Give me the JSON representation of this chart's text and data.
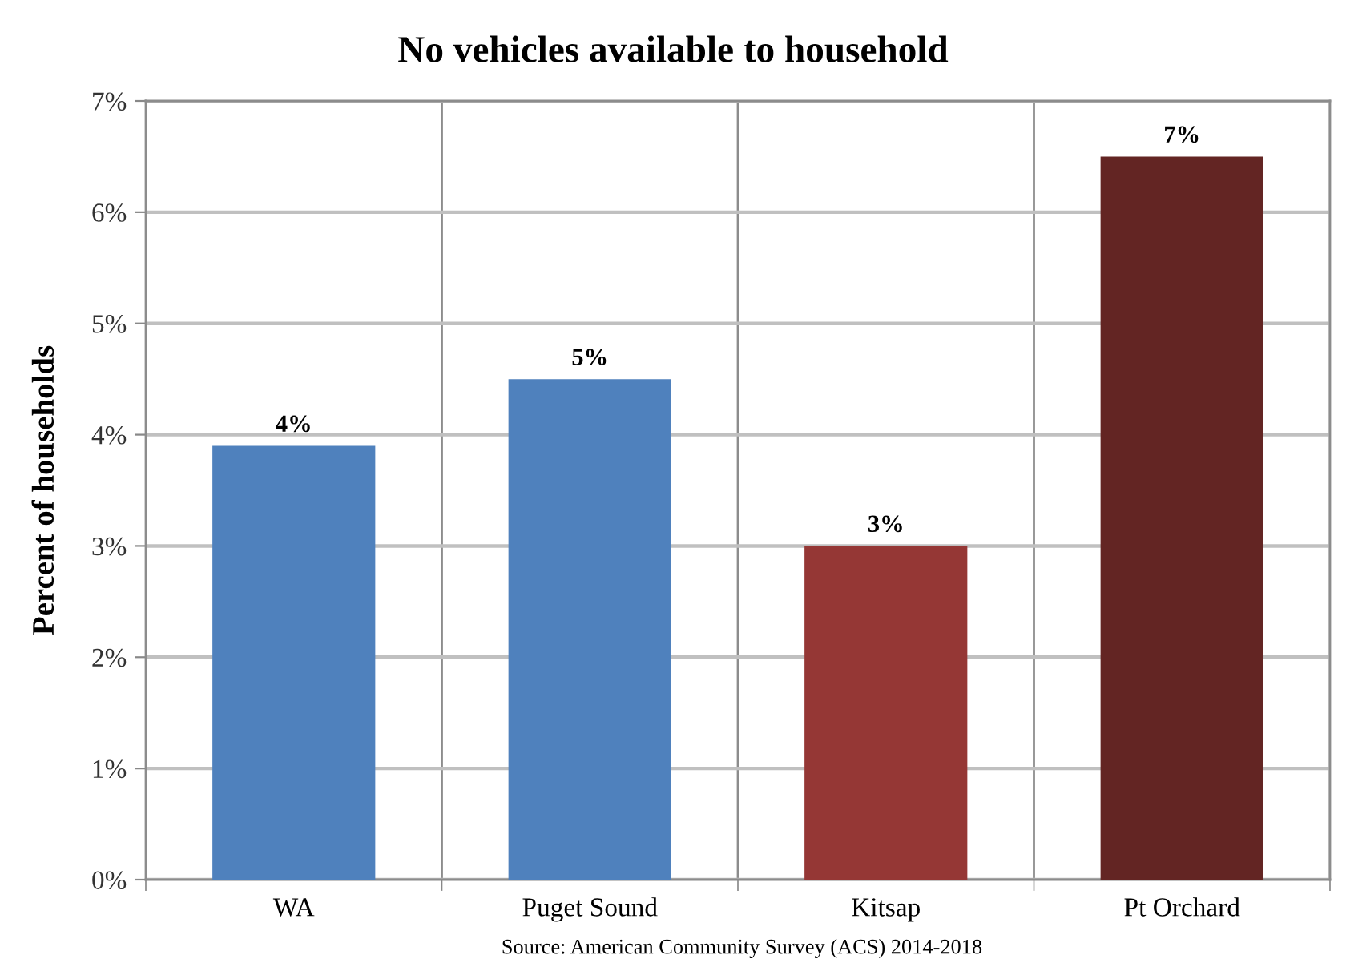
{
  "chart_data": {
    "type": "bar",
    "title": "No vehicles available to household",
    "ylabel": "Percent of households",
    "categories": [
      "WA",
      "Puget Sound",
      "Kitsap",
      "Pt Orchard"
    ],
    "values": [
      3.9,
      4.5,
      3.0,
      6.5
    ],
    "colors": [
      "#4f81bd",
      "#4f81bd",
      "#953735",
      "#632523"
    ],
    "value_labels": [
      "4%",
      "5%",
      "3%",
      "7%"
    ],
    "ylim": [
      0,
      7
    ],
    "yticks": [
      {
        "value": 0,
        "label": "0%"
      },
      {
        "value": 1,
        "label": "1%"
      },
      {
        "value": 2,
        "label": "2%"
      },
      {
        "value": 3,
        "label": "3%"
      },
      {
        "value": 4,
        "label": "4%"
      },
      {
        "value": 5,
        "label": "5%"
      },
      {
        "value": 6,
        "label": "6%"
      },
      {
        "value": 7,
        "label": "7%"
      }
    ],
    "grid": true,
    "legend": false,
    "annotations": [
      "Source: American Community Survey (ACS) 2014-2018"
    ]
  }
}
